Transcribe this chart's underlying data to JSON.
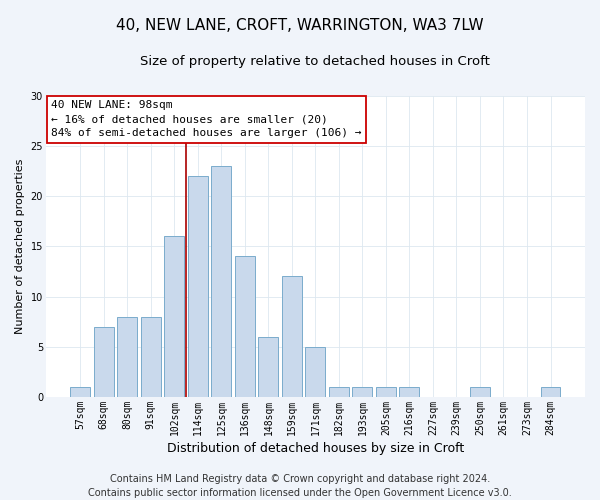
{
  "title": "40, NEW LANE, CROFT, WARRINGTON, WA3 7LW",
  "subtitle": "Size of property relative to detached houses in Croft",
  "xlabel": "Distribution of detached houses by size in Croft",
  "ylabel": "Number of detached properties",
  "bar_labels": [
    "57sqm",
    "68sqm",
    "80sqm",
    "91sqm",
    "102sqm",
    "114sqm",
    "125sqm",
    "136sqm",
    "148sqm",
    "159sqm",
    "171sqm",
    "182sqm",
    "193sqm",
    "205sqm",
    "216sqm",
    "227sqm",
    "239sqm",
    "250sqm",
    "261sqm",
    "273sqm",
    "284sqm"
  ],
  "bar_values": [
    1,
    7,
    8,
    8,
    16,
    22,
    23,
    14,
    6,
    12,
    5,
    1,
    1,
    1,
    1,
    0,
    0,
    1,
    0,
    0,
    1
  ],
  "bar_color": "#c9d9ec",
  "bar_edge_color": "#7aaccc",
  "reference_line_x": 4.5,
  "reference_line_color": "#aa0000",
  "annotation_text": "40 NEW LANE: 98sqm\n← 16% of detached houses are smaller (20)\n84% of semi-detached houses are larger (106) →",
  "annotation_box_color": "white",
  "annotation_box_edge_color": "#cc0000",
  "ylim": [
    0,
    30
  ],
  "yticks": [
    0,
    5,
    10,
    15,
    20,
    25,
    30
  ],
  "footer_text": "Contains HM Land Registry data © Crown copyright and database right 2024.\nContains public sector information licensed under the Open Government Licence v3.0.",
  "background_color": "#f0f4fa",
  "plot_background_color": "white",
  "grid_color": "#dde8f0",
  "title_fontsize": 11,
  "subtitle_fontsize": 9.5,
  "xlabel_fontsize": 9,
  "ylabel_fontsize": 8,
  "tick_fontsize": 7,
  "annotation_fontsize": 8,
  "footer_fontsize": 7
}
